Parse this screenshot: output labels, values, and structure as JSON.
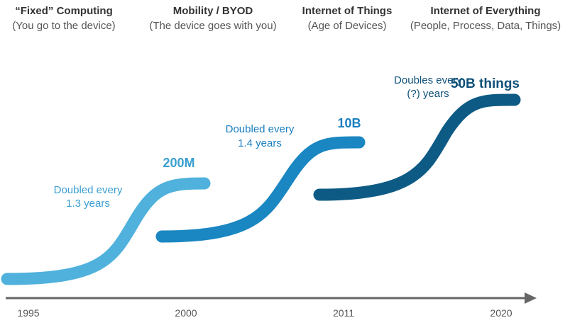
{
  "eras": [
    {
      "title": "“Fixed” Computing",
      "subtitle": "(You go to the device)"
    },
    {
      "title": "Mobility / BYOD",
      "subtitle": "(The device goes with you)"
    },
    {
      "title": "Internet of Things",
      "subtitle": "(Age of Devices)"
    },
    {
      "title": "Internet of Everything",
      "subtitle": "(People, Process, Data, Things)"
    }
  ],
  "curves": [
    {
      "label": "200M",
      "note_line1": "Doubled every",
      "note_line2": "1.3 years",
      "color": "#4fb1dc",
      "label_color": "#3a9fd0"
    },
    {
      "label": "10B",
      "note_line1": "Doubled every",
      "note_line2": "1.4 years",
      "color": "#1a86c2",
      "label_color": "#1a7fc0"
    },
    {
      "label": "50B things",
      "note_line1": "Doubles every",
      "note_line2": "(?) years",
      "color": "#0d5a85",
      "label_color": "#0e5078"
    }
  ],
  "timeline": {
    "ticks": [
      "1995",
      "2000",
      "2011",
      "2020"
    ],
    "axis_color": "#666666"
  }
}
